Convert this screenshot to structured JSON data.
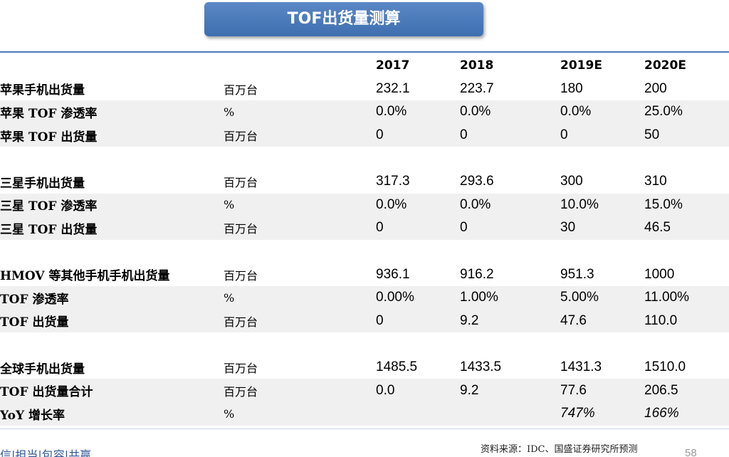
{
  "title": "TOF出货量测算",
  "columns": [
    "2017",
    "2018",
    "2019E",
    "2020E"
  ],
  "groups": [
    {
      "rows": [
        {
          "label": "苹果手机出货量",
          "unit": "百万台",
          "values": [
            "232.1",
            "223.7",
            "180",
            "200"
          ],
          "italic": false
        },
        {
          "label": "苹果 TOF 渗透率",
          "unit": "%",
          "values": [
            "0.0%",
            "0.0%",
            "0.0%",
            "25.0%"
          ],
          "italic": false
        },
        {
          "label": "苹果 TOF 出货量",
          "unit": "百万台",
          "values": [
            "0",
            "0",
            "0",
            "50"
          ],
          "italic": false
        }
      ]
    },
    {
      "rows": [
        {
          "label": "三星手机出货量",
          "unit": "百万台",
          "values": [
            "317.3",
            "293.6",
            "300",
            "310"
          ],
          "italic": false
        },
        {
          "label": "三星 TOF 渗透率",
          "unit": "%",
          "values": [
            "0.0%",
            "0.0%",
            "10.0%",
            "15.0%"
          ],
          "italic": false
        },
        {
          "label": "三星 TOF 出货量",
          "unit": "百万台",
          "values": [
            "0",
            "0",
            "30",
            "46.5"
          ],
          "italic": false
        }
      ]
    },
    {
      "rows": [
        {
          "label": "HMOV 等其他手机手机出货量",
          "unit": "百万台",
          "values": [
            "936.1",
            "916.2",
            "951.3",
            "1000"
          ],
          "italic": false
        },
        {
          "label": "TOF 渗透率",
          "unit": "%",
          "values": [
            "0.00%",
            "1.00%",
            "5.00%",
            "11.00%"
          ],
          "italic": false
        },
        {
          "label": "TOF 出货量",
          "unit": "百万台",
          "values": [
            "0",
            "9.2",
            "47.6",
            "110.0"
          ],
          "italic": false
        }
      ]
    },
    {
      "rows": [
        {
          "label": "全球手机出货量",
          "unit": "百万台",
          "values": [
            "1485.5",
            "1433.5",
            "1431.3",
            "1510.0"
          ],
          "italic": false
        },
        {
          "label": "TOF 出货量合计",
          "unit": "百万台",
          "values": [
            "0.0",
            "9.2",
            "77.6",
            "206.5"
          ],
          "italic": false
        },
        {
          "label": "YoY 增长率",
          "unit": "%",
          "values": [
            "",
            "",
            "747%",
            "166%"
          ],
          "italic": true
        }
      ]
    }
  ],
  "source": "资料来源：IDC、国盛证券研究所预测",
  "footer": "信|担当|包容|共赢",
  "page_number": "58",
  "colors": {
    "banner": "#4a78b8",
    "rule": "#4a78b8",
    "row_shade": "#f0f0f0"
  }
}
